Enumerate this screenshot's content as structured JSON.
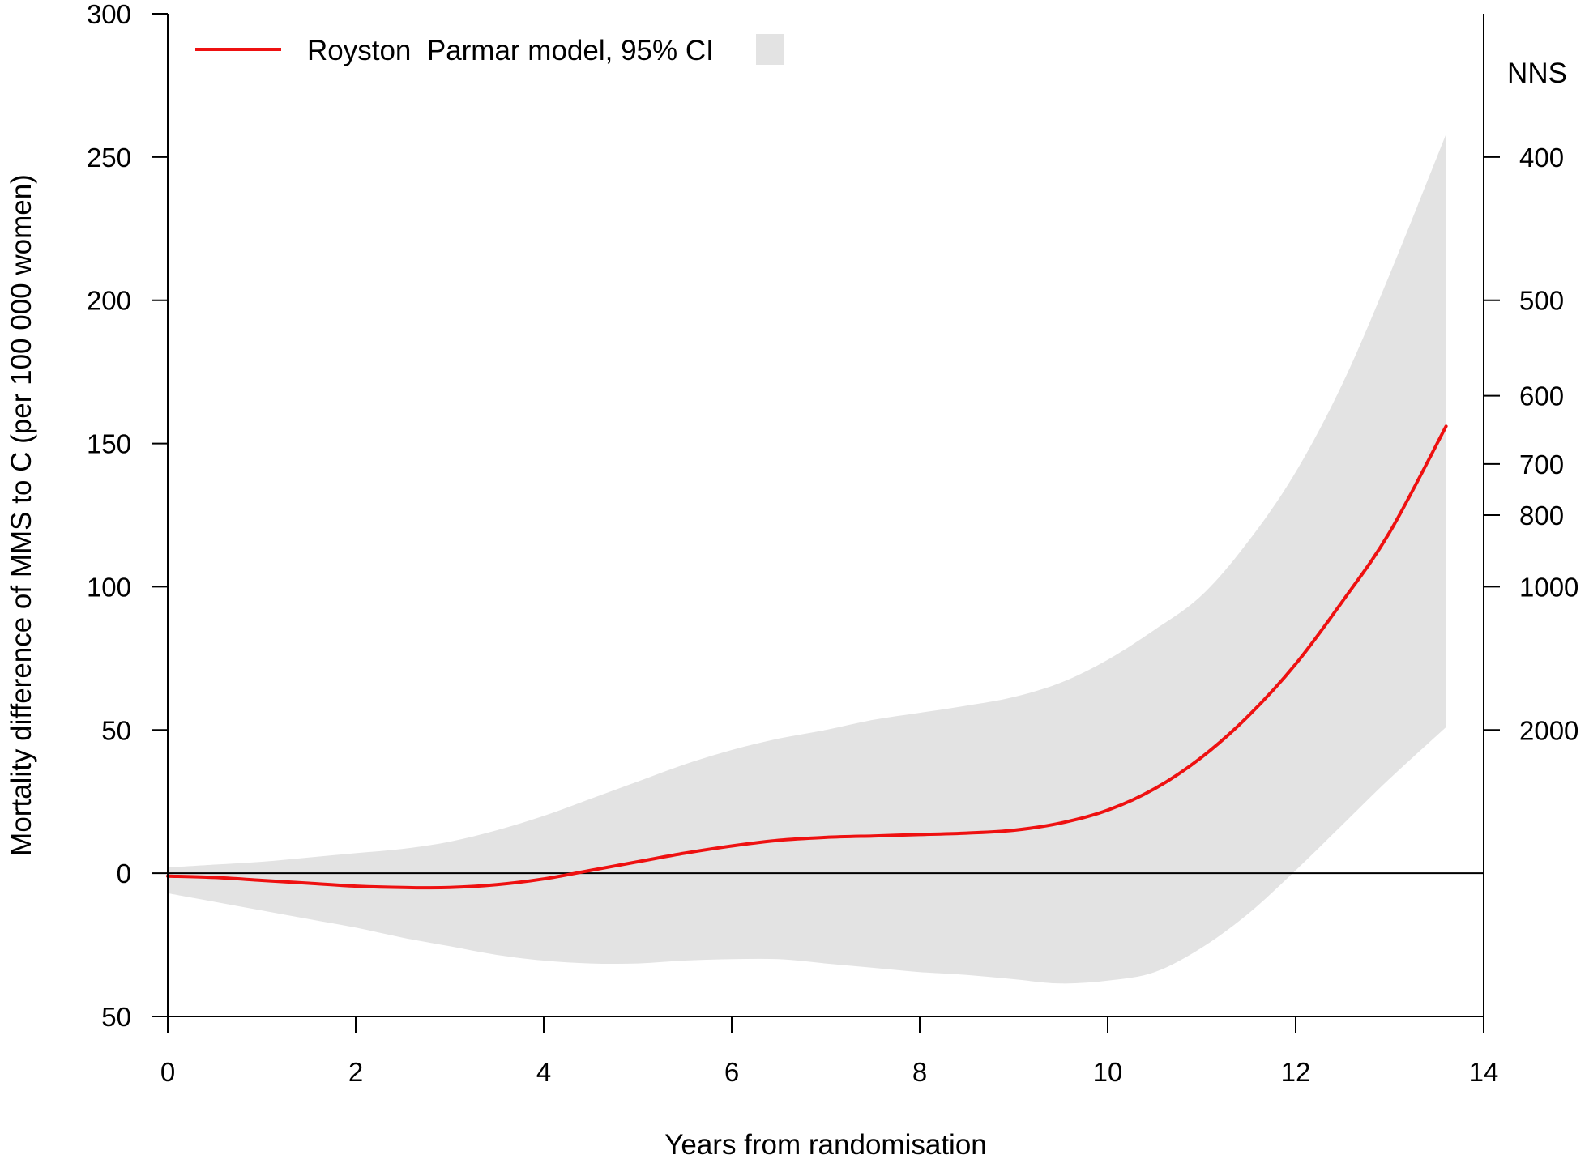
{
  "chart_data": {
    "type": "line",
    "title": "",
    "xlabel": "Years from randomisation",
    "ylabel": "Mortality difference of MMS to C (per 100 000 women)",
    "xlim": [
      0,
      14
    ],
    "ylim": [
      -50,
      300
    ],
    "x_ticks": [
      0,
      2,
      4,
      6,
      8,
      10,
      12,
      14
    ],
    "x_tick_labels": [
      "0",
      "2",
      "4",
      "6",
      "8",
      "10",
      "12",
      "14"
    ],
    "y_ticks": [
      -50,
      0,
      50,
      100,
      150,
      200,
      250,
      300
    ],
    "y_tick_labels": [
      "50",
      "0",
      "50",
      "100",
      "150",
      "200",
      "250",
      "300"
    ],
    "secondary_y": {
      "label": "NNS",
      "ticks": [
        400,
        500,
        600,
        700,
        800,
        1000,
        2000
      ],
      "tick_labels": [
        "400",
        "500",
        "600",
        "700",
        "800",
        "1000",
        "2000"
      ]
    },
    "reference_line_y": 0,
    "grid": false,
    "legend": {
      "position": "top-left",
      "entries": [
        {
          "label": "Royston  Parmar model, 95% CI",
          "line_color": "#ee1111",
          "fill_color": "#e3e3e3"
        }
      ]
    },
    "series": [
      {
        "name": "Royston  Parmar model",
        "color": "#ee1111",
        "x": [
          0,
          0.5,
          1,
          1.5,
          2,
          2.5,
          3,
          3.5,
          4,
          4.5,
          5,
          5.5,
          6,
          6.5,
          7,
          7.5,
          8,
          8.5,
          9,
          9.5,
          10,
          10.5,
          11,
          11.5,
          12,
          12.5,
          13,
          13.6
        ],
        "y": [
          -1,
          -1.5,
          -2.5,
          -3.5,
          -4.5,
          -5,
          -5,
          -4,
          -2,
          1,
          4,
          7,
          9.5,
          11.5,
          12.5,
          13,
          13.5,
          14,
          15,
          17.5,
          22,
          29.5,
          40.5,
          55,
          73,
          95,
          119,
          156
        ]
      }
    ],
    "confidence_band": {
      "name": "95% CI",
      "color": "#e3e3e3",
      "x": [
        0,
        0.5,
        1,
        1.5,
        2,
        2.5,
        3,
        3.5,
        4,
        4.5,
        5,
        5.5,
        6,
        6.5,
        7,
        7.5,
        8,
        8.5,
        9,
        9.5,
        10,
        10.5,
        11,
        11.5,
        12,
        12.5,
        13,
        13.6
      ],
      "upper": [
        2,
        3,
        4,
        5.5,
        7,
        8.5,
        11,
        15,
        20,
        26,
        32,
        38,
        43,
        47,
        50,
        53.5,
        56,
        58.5,
        61.5,
        66.5,
        74.5,
        85,
        97,
        116,
        140,
        171,
        209,
        258
      ],
      "lower": [
        -7,
        -10,
        -13,
        -16,
        -19,
        -22.5,
        -25.5,
        -28.5,
        -30.5,
        -31.5,
        -31.5,
        -30.5,
        -30,
        -30,
        -31.5,
        -33,
        -34.5,
        -35.5,
        -37,
        -38.5,
        -37.5,
        -34.5,
        -26,
        -14,
        1,
        17,
        33,
        51
      ]
    }
  }
}
